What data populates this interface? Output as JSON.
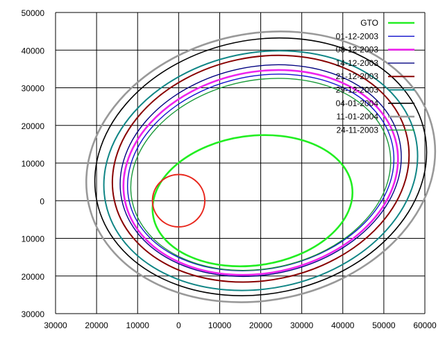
{
  "chart_data": {
    "type": "line",
    "title": "",
    "xlabel": "",
    "ylabel": "",
    "xlim": [
      -30000,
      60000
    ],
    "ylim": [
      -30000,
      50000
    ],
    "x_ticks": [
      -30000,
      -20000,
      -10000,
      0,
      10000,
      20000,
      30000,
      40000,
      50000,
      60000
    ],
    "x_tick_labels": [
      "30000",
      "20000",
      "10000",
      "0",
      "10000",
      "20000",
      "30000",
      "40000",
      "50000",
      "60000"
    ],
    "y_ticks": [
      50000,
      40000,
      30000,
      20000,
      10000,
      0,
      -10000,
      -20000,
      -30000
    ],
    "y_tick_labels": [
      "50000",
      "40000",
      "30000",
      "20000",
      "10000",
      "0",
      "10000",
      "20000",
      "30000"
    ],
    "grid": true,
    "legend_position": "top-right",
    "earth": {
      "cx": 0,
      "cy": 0,
      "r": 6378,
      "color": "#e8261c"
    },
    "series": [
      {
        "name": "GTO",
        "color": "#22ee22",
        "width": 2.6,
        "cx": 18000,
        "cy": 0,
        "rx": 24500,
        "ry": 17200,
        "tilt": -8
      },
      {
        "name": "01-12-2003",
        "color": "#1111cc",
        "width": 1.4,
        "cx": 20000,
        "cy": 7500,
        "rx": 32800,
        "ry": 25600,
        "tilt": -12
      },
      {
        "name": "08-12-2003",
        "color": "#ee22ee",
        "width": 2.6,
        "cx": 20000,
        "cy": 7500,
        "rx": 33800,
        "ry": 26700,
        "tilt": -12
      },
      {
        "name": "14-12-2003",
        "color": "#000080",
        "width": 1.4,
        "cx": 20000,
        "cy": 8000,
        "rx": 34600,
        "ry": 27600,
        "tilt": -12
      },
      {
        "name": "21-12-2003",
        "color": "#880000",
        "width": 2.0,
        "cx": 20000,
        "cy": 8500,
        "rx": 36500,
        "ry": 29600,
        "tilt": -12
      },
      {
        "name": "29-12-2003",
        "color": "#0f8585",
        "width": 2.0,
        "cx": 20000,
        "cy": 8000,
        "rx": 38600,
        "ry": 31300,
        "tilt": -12
      },
      {
        "name": "04-01-2004",
        "color": "#000000",
        "width": 1.6,
        "cx": 20000,
        "cy": 9000,
        "rx": 40800,
        "ry": 33700,
        "tilt": -12
      },
      {
        "name": "11-01-2004",
        "color": "#999999",
        "width": 2.6,
        "cx": 20000,
        "cy": 9000,
        "rx": 42900,
        "ry": 35400,
        "tilt": -12
      },
      {
        "name": "24-11-2003",
        "color": "#1a9a3a",
        "width": 1.4,
        "cx": 20000,
        "cy": 7000,
        "rx": 32000,
        "ry": 25000,
        "tilt": -12
      }
    ]
  }
}
